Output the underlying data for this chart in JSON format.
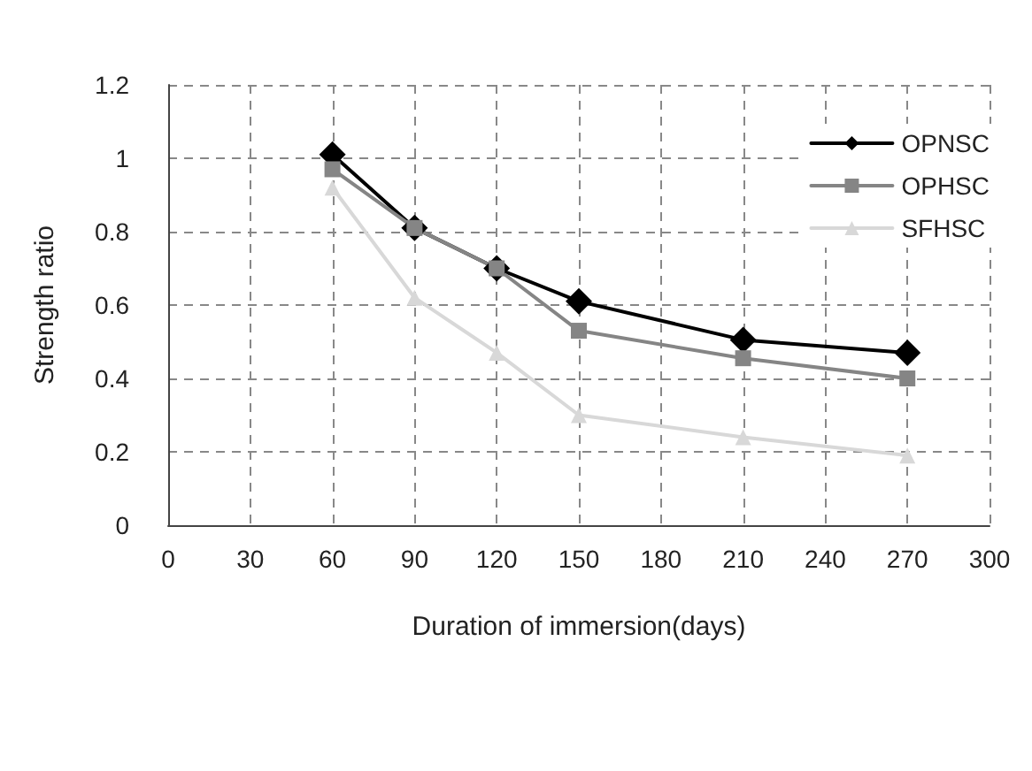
{
  "chart_data": {
    "type": "line",
    "xlabel": "Duration of immersion(days)",
    "ylabel": "Strength ratio",
    "x": [
      60,
      90,
      120,
      150,
      210,
      270
    ],
    "series": [
      {
        "name": "OPNSC",
        "color": "#000000",
        "marker": "diamond",
        "values": [
          1.01,
          0.81,
          0.7,
          0.61,
          0.505,
          0.47
        ]
      },
      {
        "name": "OPHSC",
        "color": "#858585",
        "marker": "square",
        "values": [
          0.97,
          0.81,
          0.7,
          0.53,
          0.455,
          0.4
        ]
      },
      {
        "name": "SFHSC",
        "color": "#d8d8d8",
        "marker": "triangle",
        "values": [
          0.92,
          0.62,
          0.47,
          0.3,
          0.24,
          0.19
        ]
      }
    ],
    "xlim": [
      0,
      300
    ],
    "xticks": [
      0,
      30,
      60,
      90,
      120,
      150,
      180,
      210,
      240,
      270,
      300
    ],
    "ylim": [
      0,
      1.2
    ],
    "yticks": [
      0,
      0.2,
      0.4,
      0.6,
      0.8,
      1,
      1.2
    ],
    "grid": true,
    "legend": "top right",
    "line_style": "solid"
  }
}
